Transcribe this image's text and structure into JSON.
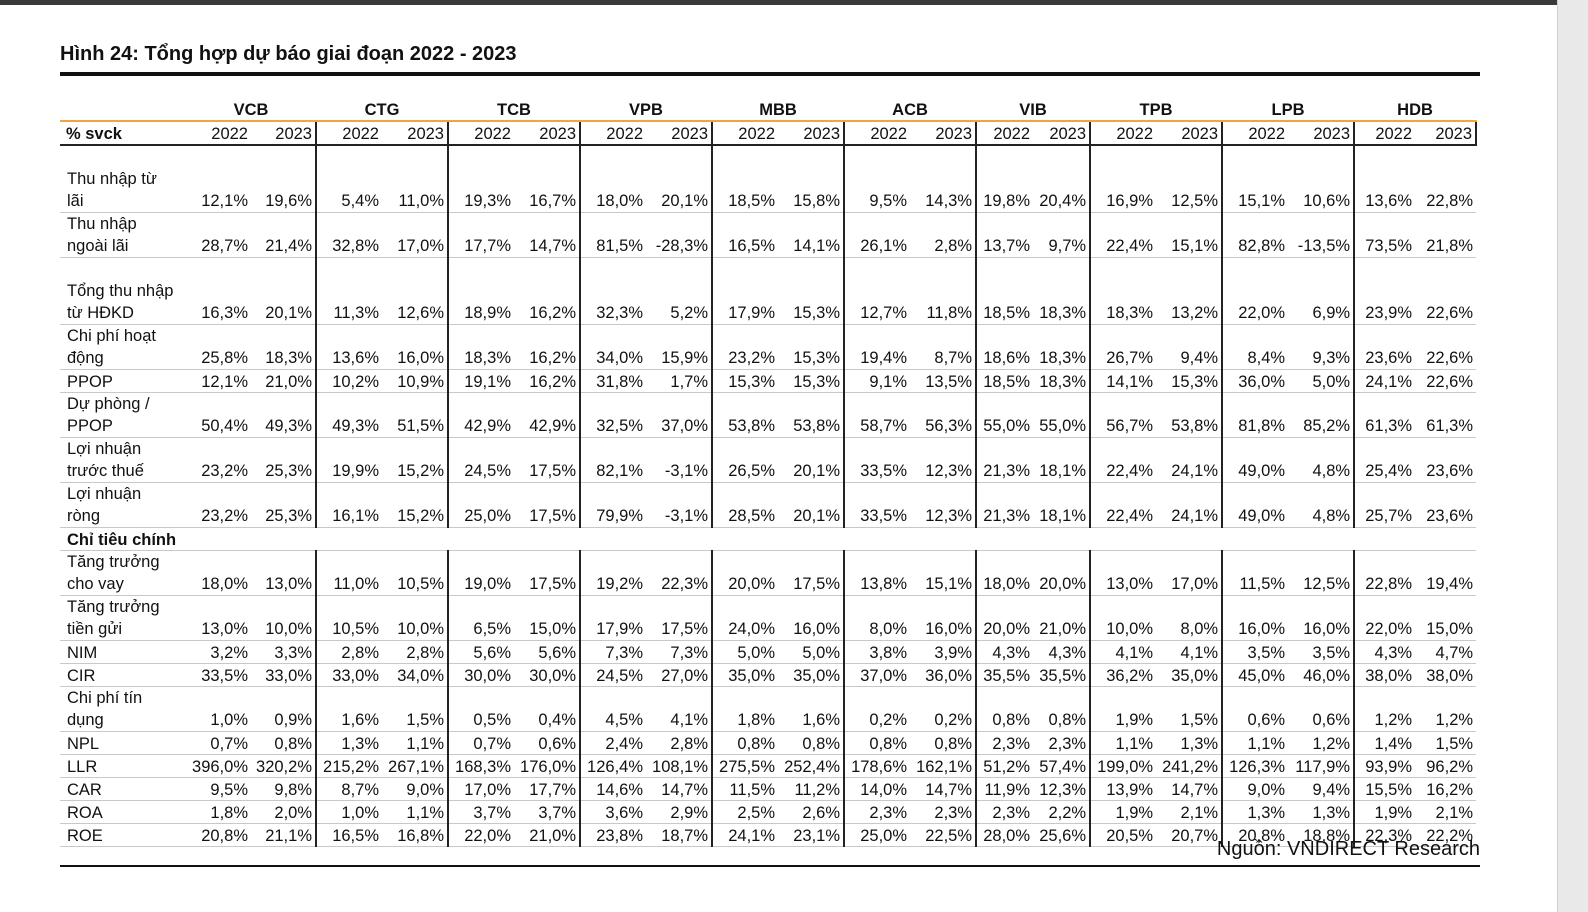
{
  "title": "Hình 24: Tổng hợp dự báo giai đoạn 2022 - 2023",
  "source": "Nguồn: VNDIRECT Research",
  "header_label": "% svck",
  "years": [
    "2022",
    "2023"
  ],
  "banks": [
    "VCB",
    "CTG",
    "TCB",
    "VPB",
    "MBB",
    "ACB",
    "VIB",
    "TPB",
    "LPB",
    "HDB"
  ],
  "rows": [
    {
      "label": "Thu nhập từ lãi",
      "values": [
        "12,1%",
        "19,6%",
        "5,4%",
        "11,0%",
        "19,3%",
        "16,7%",
        "18,0%",
        "20,1%",
        "18,5%",
        "15,8%",
        "9,5%",
        "14,3%",
        "19,8%",
        "20,4%",
        "16,9%",
        "12,5%",
        "15,1%",
        "10,6%",
        "13,6%",
        "22,8%"
      ]
    },
    {
      "label": "Thu nhập ngoài lãi",
      "values": [
        "28,7%",
        "21,4%",
        "32,8%",
        "17,0%",
        "17,7%",
        "14,7%",
        "81,5%",
        "-28,3%",
        "16,5%",
        "14,1%",
        "26,1%",
        "2,8%",
        "13,7%",
        "9,7%",
        "22,4%",
        "15,1%",
        "82,8%",
        "-13,5%",
        "73,5%",
        "21,8%"
      ]
    },
    {
      "label": "Tổng thu nhập từ HĐKD",
      "values": [
        "16,3%",
        "20,1%",
        "11,3%",
        "12,6%",
        "18,9%",
        "16,2%",
        "32,3%",
        "5,2%",
        "17,9%",
        "15,3%",
        "12,7%",
        "11,8%",
        "18,5%",
        "18,3%",
        "18,3%",
        "13,2%",
        "22,0%",
        "6,9%",
        "23,9%",
        "22,6%"
      ]
    },
    {
      "label": "Chi phí hoạt động",
      "values": [
        "25,8%",
        "18,3%",
        "13,6%",
        "16,0%",
        "18,3%",
        "16,2%",
        "34,0%",
        "15,9%",
        "23,2%",
        "15,3%",
        "19,4%",
        "8,7%",
        "18,6%",
        "18,3%",
        "26,7%",
        "9,4%",
        "8,4%",
        "9,3%",
        "23,6%",
        "22,6%"
      ]
    },
    {
      "label": "PPOP",
      "values": [
        "12,1%",
        "21,0%",
        "10,2%",
        "10,9%",
        "19,1%",
        "16,2%",
        "31,8%",
        "1,7%",
        "15,3%",
        "15,3%",
        "9,1%",
        "13,5%",
        "18,5%",
        "18,3%",
        "14,1%",
        "15,3%",
        "36,0%",
        "5,0%",
        "24,1%",
        "22,6%"
      ]
    },
    {
      "label": "Dự phòng / PPOP",
      "values": [
        "50,4%",
        "49,3%",
        "49,3%",
        "51,5%",
        "42,9%",
        "42,9%",
        "32,5%",
        "37,0%",
        "53,8%",
        "53,8%",
        "58,7%",
        "56,3%",
        "55,0%",
        "55,0%",
        "56,7%",
        "53,8%",
        "81,8%",
        "85,2%",
        "61,3%",
        "61,3%"
      ]
    },
    {
      "label": "Lợi nhuận trước thuế",
      "values": [
        "23,2%",
        "25,3%",
        "19,9%",
        "15,2%",
        "24,5%",
        "17,5%",
        "82,1%",
        "-3,1%",
        "26,5%",
        "20,1%",
        "33,5%",
        "12,3%",
        "21,3%",
        "18,1%",
        "22,4%",
        "24,1%",
        "49,0%",
        "4,8%",
        "25,4%",
        "23,6%"
      ]
    },
    {
      "label": "Lợi nhuận ròng",
      "values": [
        "23,2%",
        "25,3%",
        "16,1%",
        "15,2%",
        "25,0%",
        "17,5%",
        "79,9%",
        "-3,1%",
        "28,5%",
        "20,1%",
        "33,5%",
        "12,3%",
        "21,3%",
        "18,1%",
        "22,4%",
        "24,1%",
        "49,0%",
        "4,8%",
        "25,7%",
        "23,6%"
      ]
    }
  ],
  "section_label": "Chỉ tiêu chính",
  "rows2": [
    {
      "label": "Tăng trưởng cho vay",
      "values": [
        "18,0%",
        "13,0%",
        "11,0%",
        "10,5%",
        "19,0%",
        "17,5%",
        "19,2%",
        "22,3%",
        "20,0%",
        "17,5%",
        "13,8%",
        "15,1%",
        "18,0%",
        "20,0%",
        "13,0%",
        "17,0%",
        "11,5%",
        "12,5%",
        "22,8%",
        "19,4%"
      ]
    },
    {
      "label": "Tăng trưởng tiền gửi",
      "values": [
        "13,0%",
        "10,0%",
        "10,5%",
        "10,0%",
        "6,5%",
        "15,0%",
        "17,9%",
        "17,5%",
        "24,0%",
        "16,0%",
        "8,0%",
        "16,0%",
        "20,0%",
        "21,0%",
        "10,0%",
        "8,0%",
        "16,0%",
        "16,0%",
        "22,0%",
        "15,0%"
      ]
    },
    {
      "label": "NIM",
      "values": [
        "3,2%",
        "3,3%",
        "2,8%",
        "2,8%",
        "5,6%",
        "5,6%",
        "7,3%",
        "7,3%",
        "5,0%",
        "5,0%",
        "3,8%",
        "3,9%",
        "4,3%",
        "4,3%",
        "4,1%",
        "4,1%",
        "3,5%",
        "3,5%",
        "4,3%",
        "4,7%"
      ]
    },
    {
      "label": "CIR",
      "values": [
        "33,5%",
        "33,0%",
        "33,0%",
        "34,0%",
        "30,0%",
        "30,0%",
        "24,5%",
        "27,0%",
        "35,0%",
        "35,0%",
        "37,0%",
        "36,0%",
        "35,5%",
        "35,5%",
        "36,2%",
        "35,0%",
        "45,0%",
        "46,0%",
        "38,0%",
        "38,0%"
      ]
    },
    {
      "label": "Chi phí tín dụng",
      "values": [
        "1,0%",
        "0,9%",
        "1,6%",
        "1,5%",
        "0,5%",
        "0,4%",
        "4,5%",
        "4,1%",
        "1,8%",
        "1,6%",
        "0,2%",
        "0,2%",
        "0,8%",
        "0,8%",
        "1,9%",
        "1,5%",
        "0,6%",
        "0,6%",
        "1,2%",
        "1,2%"
      ]
    },
    {
      "label": "NPL",
      "values": [
        "0,7%",
        "0,8%",
        "1,3%",
        "1,1%",
        "0,7%",
        "0,6%",
        "2,4%",
        "2,8%",
        "0,8%",
        "0,8%",
        "0,8%",
        "0,8%",
        "2,3%",
        "2,3%",
        "1,1%",
        "1,3%",
        "1,1%",
        "1,2%",
        "1,4%",
        "1,5%"
      ]
    },
    {
      "label": "LLR",
      "values": [
        "396,0%",
        "320,2%",
        "215,2%",
        "267,1%",
        "168,3%",
        "176,0%",
        "126,4%",
        "108,1%",
        "275,5%",
        "252,4%",
        "178,6%",
        "162,1%",
        "51,2%",
        "57,4%",
        "199,0%",
        "241,2%",
        "126,3%",
        "117,9%",
        "93,9%",
        "96,2%"
      ]
    },
    {
      "label": "CAR",
      "values": [
        "9,5%",
        "9,8%",
        "8,7%",
        "9,0%",
        "17,0%",
        "17,7%",
        "14,6%",
        "14,7%",
        "11,5%",
        "11,2%",
        "14,0%",
        "14,7%",
        "11,9%",
        "12,3%",
        "13,9%",
        "14,7%",
        "9,0%",
        "9,4%",
        "15,5%",
        "16,2%"
      ]
    },
    {
      "label": "ROA",
      "values": [
        "1,8%",
        "2,0%",
        "1,0%",
        "1,1%",
        "3,7%",
        "3,7%",
        "3,6%",
        "2,9%",
        "2,5%",
        "2,6%",
        "2,3%",
        "2,3%",
        "2,3%",
        "2,2%",
        "1,9%",
        "2,1%",
        "1,3%",
        "1,3%",
        "1,9%",
        "2,1%"
      ]
    },
    {
      "label": "ROE",
      "values": [
        "20,8%",
        "21,1%",
        "16,5%",
        "16,8%",
        "22,0%",
        "21,0%",
        "23,8%",
        "18,7%",
        "24,1%",
        "23,1%",
        "25,0%",
        "22,5%",
        "28,0%",
        "25,6%",
        "20,5%",
        "20,7%",
        "20,8%",
        "18,8%",
        "22,3%",
        "22,2%"
      ]
    }
  ]
}
